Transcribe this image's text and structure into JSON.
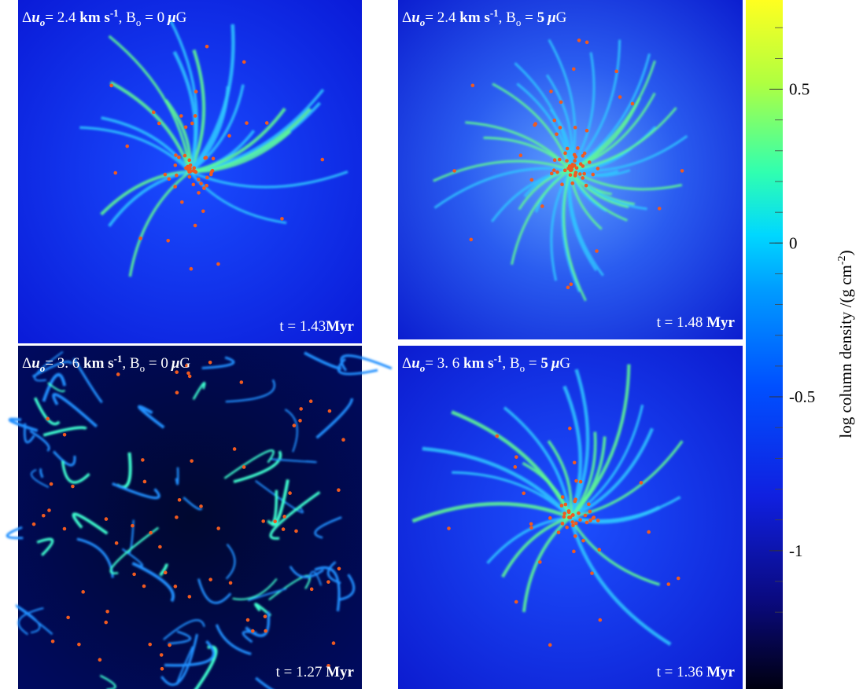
{
  "panels": [
    {
      "du": "2.4",
      "b": "0",
      "time": "t  =  1.43",
      "unit": "Myr"
    },
    {
      "du": "2.4",
      "b": "5",
      "time": "t  =  1.48 ",
      "unit": "Myr"
    },
    {
      "du": "3. 6",
      "b": "0",
      "time": "t  =  1.27 ",
      "unit": "Myr"
    },
    {
      "du": "3. 6",
      "b": "5",
      "time": "t  =  1.36 ",
      "unit": "Myr"
    }
  ],
  "label_parts": {
    "delta": "Δ",
    "u": "u",
    "o": "o",
    "eq": "= ",
    "km": " km s",
    "exp": "-1",
    "comma": ", B",
    "beq": " =  ",
    "mu": "μ",
    "g": "G"
  },
  "colorbar": {
    "label": "log column density /(g cm",
    "label_exp": "-2",
    "label_end": ")",
    "clim": [
      -1.45,
      0.79
    ],
    "ticks": [
      0.5,
      0,
      -0.5,
      -1
    ]
  }
}
